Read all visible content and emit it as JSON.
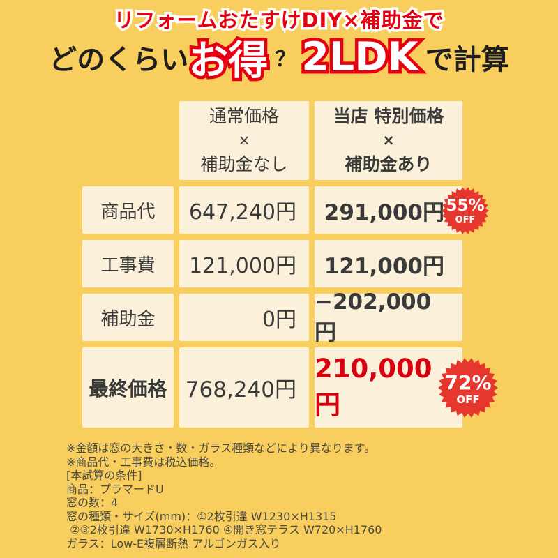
{
  "header": {
    "line1": "リフォームおたすけDIY×補助金で",
    "line2_prefix": "どのくらい",
    "line2_highlight1": "お得",
    "line2_question": "？",
    "line2_highlight2": "2LDK",
    "line2_suffix": "で計算"
  },
  "table": {
    "col_headers": {
      "normal": {
        "line1": "通常価格",
        "times": "×",
        "line3": "補助金なし"
      },
      "special": {
        "line1": "当店 特別価格",
        "times": "×",
        "line3": "補助金あり"
      }
    },
    "rows": [
      {
        "label": "商品代",
        "normal": "647,240円",
        "special": "291,000円",
        "badge": {
          "percent": "55%",
          "off": "OFF"
        }
      },
      {
        "label": "工事費",
        "normal": "121,000円",
        "special": "121,000円"
      },
      {
        "label": "補助金",
        "normal": "0円",
        "special": "−202,000円"
      },
      {
        "label": "最終価格",
        "normal": "768,240円",
        "special": "210,000円",
        "badge": {
          "percent": "72%",
          "off": "OFF"
        }
      }
    ]
  },
  "footer": {
    "lines": [
      "※金額は窓の大きさ・数・ガラス種類などにより異なります。",
      "※商品代・工事費は税込価格。",
      "[本試算の条件]",
      "商品：プラマードU",
      "窓の数：4",
      "窓の種類・サイズ(mm)：①2枚引違 W1230×H1315",
      " ②③2枚引違 W1730×H1760 ④開き窓テラス W720×H1760",
      "ガラス：Low-E複層断熱 アルゴンガス入り"
    ]
  },
  "colors": {
    "background_yellow": "#F8CE5E",
    "cell_cream": "#FBF0D9",
    "accent_red": "#E60012",
    "badge_red": "#E6372E",
    "price_red": "#D7000F",
    "text_dark": "#3A3A3A"
  }
}
